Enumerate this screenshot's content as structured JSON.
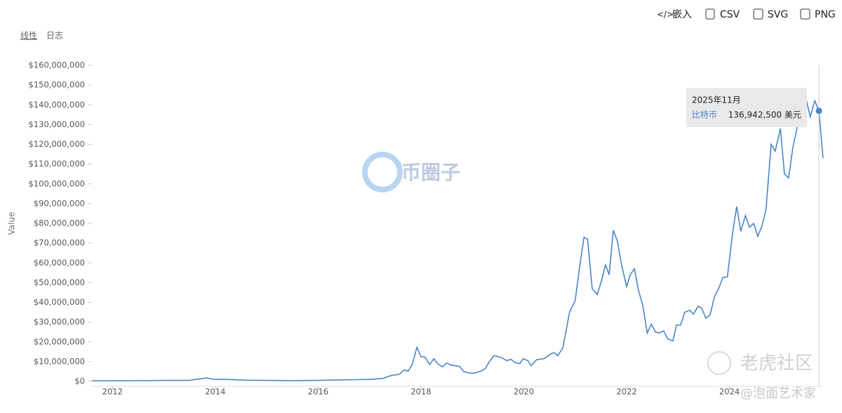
{
  "toolbar": [
    "嵌入",
    "CSV",
    "SVG",
    "PNG"
  ],
  "scale_toggle": [
    "线性",
    "日志"
  ],
  "watermarks": [
    "币圈子",
    "老虎社区",
    "@泡面艺术家"
  ],
  "chart_data": {
    "type": "line",
    "ylabel": "Value",
    "xlim": [
      2011.6,
      2025.82
    ],
    "xticks": [
      2012,
      2014,
      2016,
      2018,
      2020,
      2022,
      2024
    ],
    "ylim": [
      0,
      160000000
    ],
    "yticks": [
      {
        "value": 0,
        "label": "$0"
      },
      {
        "value": 10000000,
        "label": "$10,000,000"
      },
      {
        "value": 20000000,
        "label": "$20,000,000"
      },
      {
        "value": 30000000,
        "label": "$30,000,000"
      },
      {
        "value": 40000000,
        "label": "$40,000,000"
      },
      {
        "value": 50000000,
        "label": "$50,000,000"
      },
      {
        "value": 60000000,
        "label": "$60,000,000"
      },
      {
        "value": 70000000,
        "label": "$70,000,000"
      },
      {
        "value": 80000000,
        "label": "$80,000,000"
      },
      {
        "value": 90000000,
        "label": "$90,000,000"
      },
      {
        "value": 100000000,
        "label": "$100,000,000"
      },
      {
        "value": 110000000,
        "label": "$110,000,000"
      },
      {
        "value": 120000000,
        "label": "$120,000,000"
      },
      {
        "value": 130000000,
        "label": "$130,000,000"
      },
      {
        "value": 140000000,
        "label": "$140,000,000"
      },
      {
        "value": 150000000,
        "label": "$150,000,000"
      },
      {
        "value": 160000000,
        "label": "$160,000,000"
      }
    ],
    "x": [
      2011.6,
      2012.0,
      2012.5,
      2013.0,
      2013.5,
      2013.83,
      2013.95,
      2014.2,
      2014.6,
      2015.0,
      2015.5,
      2016.0,
      2016.5,
      2017.0,
      2017.25,
      2017.42,
      2017.58,
      2017.67,
      2017.75,
      2017.83,
      2017.92,
      2018.0,
      2018.08,
      2018.17,
      2018.25,
      2018.33,
      2018.42,
      2018.5,
      2018.58,
      2018.67,
      2018.75,
      2018.83,
      2018.92,
      2019.0,
      2019.08,
      2019.17,
      2019.25,
      2019.33,
      2019.42,
      2019.5,
      2019.58,
      2019.67,
      2019.75,
      2019.83,
      2019.92,
      2019.99,
      2020.08,
      2020.14,
      2020.25,
      2020.39,
      2020.53,
      2020.59,
      2020.66,
      2020.76,
      2020.81,
      2020.89,
      2021.0,
      2021.08,
      2021.17,
      2021.24,
      2021.33,
      2021.43,
      2021.51,
      2021.59,
      2021.66,
      2021.74,
      2021.82,
      2021.9,
      2022.0,
      2022.07,
      2022.15,
      2022.23,
      2022.31,
      2022.4,
      2022.48,
      2022.56,
      2022.63,
      2022.72,
      2022.8,
      2022.9,
      2022.97,
      2023.05,
      2023.13,
      2023.23,
      2023.3,
      2023.39,
      2023.46,
      2023.54,
      2023.62,
      2023.71,
      2023.79,
      2023.87,
      2023.96,
      2024.06,
      2024.14,
      2024.22,
      2024.31,
      2024.39,
      2024.47,
      2024.55,
      2024.63,
      2024.71,
      2024.81,
      2024.89,
      2024.99,
      2025.07,
      2025.15,
      2025.23,
      2025.32,
      2025.4,
      2025.48,
      2025.57,
      2025.66,
      2025.74,
      2025.82
    ],
    "series": [
      {
        "name": "比特币",
        "color": "#4a86c8",
        "values": [
          300000,
          300000,
          350000,
          500000,
          500000,
          1800000,
          1100000,
          1000000,
          600000,
          500000,
          400000,
          500000,
          800000,
          1000000,
          1500000,
          3000000,
          3600000,
          5800000,
          5200000,
          8500000,
          17200000,
          12500000,
          12300000,
          8500000,
          11500000,
          8800000,
          7400000,
          9300000,
          8300000,
          7900000,
          7600000,
          5000000,
          4400000,
          4100000,
          4600000,
          5200000,
          6500000,
          10000000,
          13000000,
          12500000,
          11800000,
          10500000,
          11200000,
          9500000,
          9000000,
          11500000,
          10500000,
          8000000,
          11000000,
          11500000,
          14000000,
          14500000,
          13000000,
          17000000,
          24000000,
          35000000,
          41000000,
          57000000,
          73000000,
          72000000,
          47000000,
          44000000,
          51000000,
          59000000,
          54000000,
          76500000,
          71000000,
          59000000,
          48000000,
          54000000,
          57000000,
          46000000,
          39000000,
          24500000,
          29000000,
          25000000,
          24500000,
          25500000,
          21500000,
          20500000,
          28500000,
          28500000,
          35000000,
          36000000,
          34000000,
          38000000,
          37000000,
          32000000,
          33500000,
          43000000,
          47000000,
          52500000,
          53000000,
          75000000,
          88500000,
          76000000,
          84000000,
          78000000,
          80000000,
          73500000,
          78500000,
          87000000,
          120000000,
          116500000,
          128000000,
          105000000,
          103000000,
          118000000,
          129000000,
          140000000,
          144000000,
          134000000,
          142000000,
          136942500,
          113000000
        ]
      }
    ],
    "tooltip": {
      "title": "2025年11月",
      "value": 136942500,
      "value_label": "136,942,500 美元"
    }
  }
}
